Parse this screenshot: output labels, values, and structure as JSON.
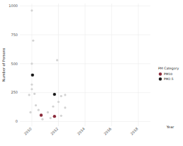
{
  "chart_data": {
    "type": "scatter",
    "x_label": "Year",
    "y_label": "Number of Persons",
    "legend_title": "PM Category",
    "legend": "right",
    "grid": true,
    "xlim": [
      2009.1,
      2018.9
    ],
    "xticks": [
      2010,
      2012,
      2014,
      2016,
      2018
    ],
    "ylim": [
      -40,
      1020
    ],
    "yticks": [
      0,
      250,
      500,
      750,
      1000
    ],
    "series": [
      {
        "color": "#d3d3d3",
        "marker": "circle",
        "x": [
          2010.0,
          2010.1,
          2011.9,
          2010.0,
          2010.0,
          2010.0,
          2010.2,
          2009.8,
          2010.3,
          2010.5,
          2009.9,
          2011.2,
          2011.6,
          2012.0,
          2012.2,
          2012.2,
          2012.5,
          2012.5,
          2010.8,
          2011.4
        ],
        "values": [
          960,
          700,
          530,
          500,
          320,
          280,
          240,
          230,
          140,
          100,
          80,
          80,
          130,
          170,
          220,
          50,
          230,
          120,
          20,
          30
        ]
      },
      {
        "name": "PM10",
        "color": "#8b2a3a",
        "marker": "circle",
        "x": [
          2010.7,
          2011.7
        ],
        "values": [
          55,
          45
        ]
      },
      {
        "name": "PM2.5",
        "color": "#1a1a1a",
        "marker": "circle",
        "x": [
          2010.05,
          2011.7
        ],
        "values": [
          402,
          235
        ]
      }
    ]
  }
}
